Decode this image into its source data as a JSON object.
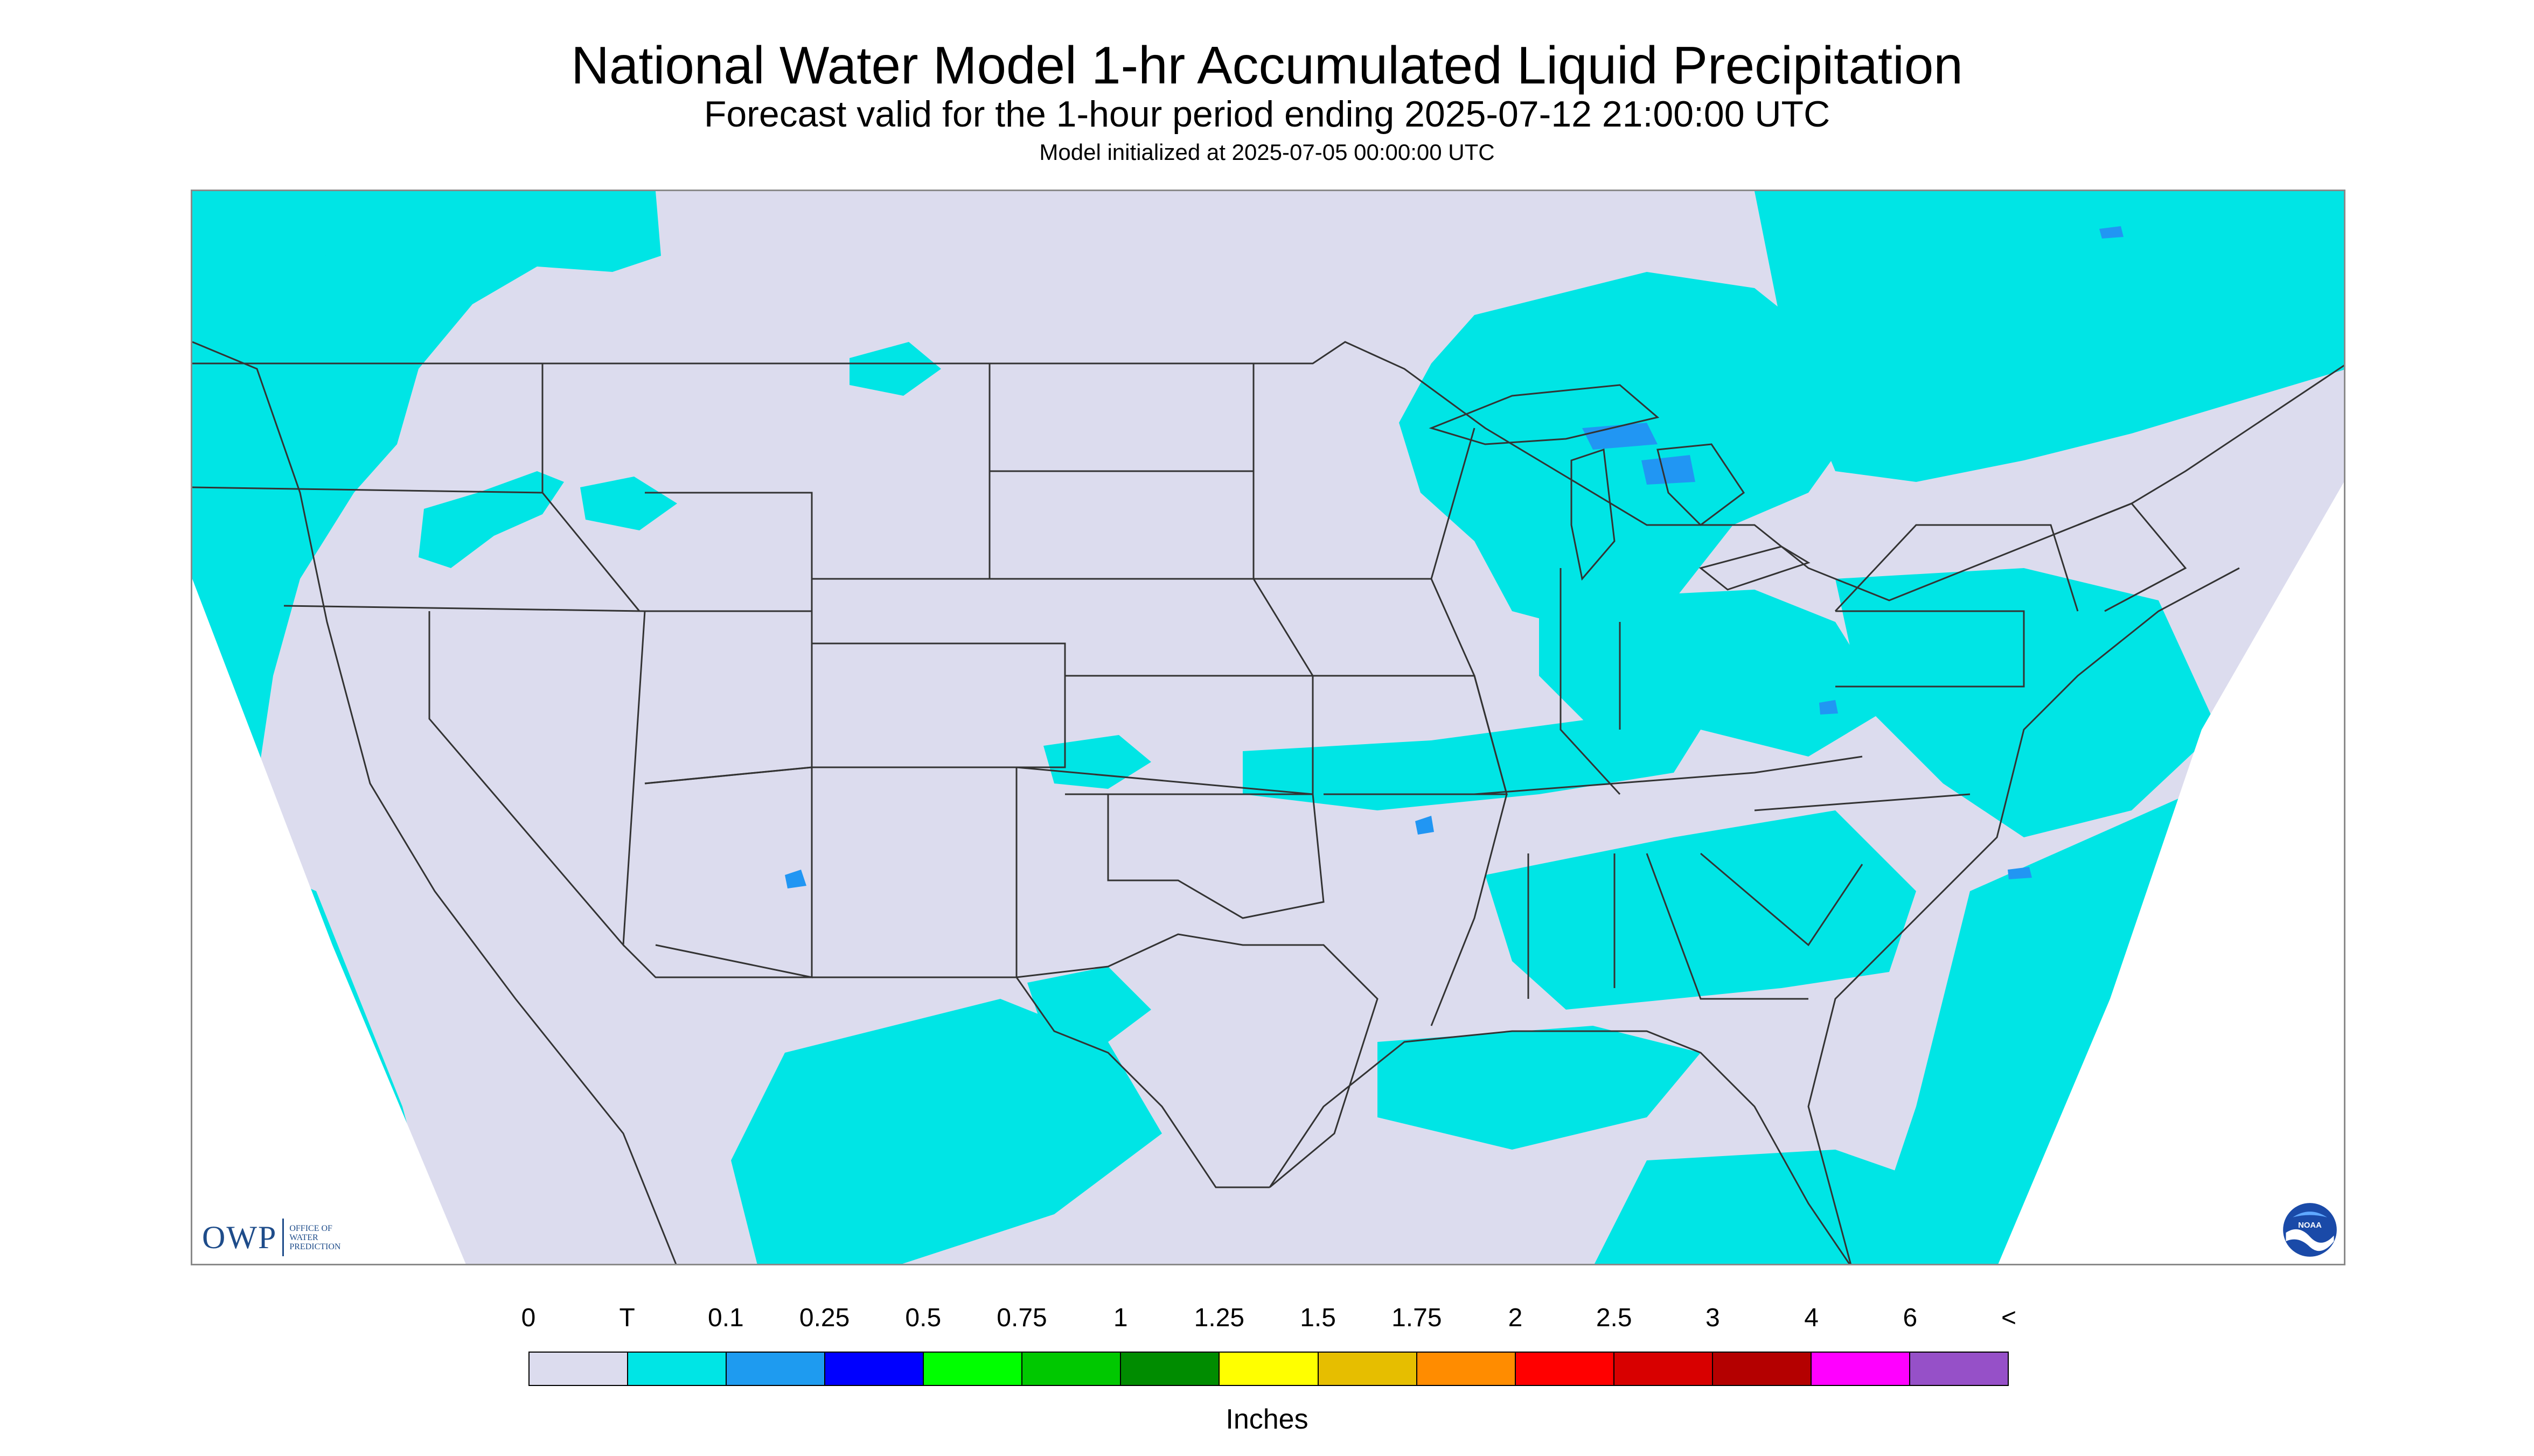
{
  "header": {
    "title": "National Water Model 1-hr Accumulated Liquid Precipitation",
    "subtitle": "Forecast valid for the 1-hour period ending 2025-07-12 21:00:00 UTC",
    "init": "Model initialized at 2025-07-05 00:00:00 UTC"
  },
  "map": {
    "background_color": "#dcdcee",
    "precip_color": "#00e5e5",
    "heavier_color": "#2196f3",
    "border_color": "#333333",
    "owp_logo": {
      "text": "OWP",
      "lines": [
        "OFFICE OF",
        "WATER",
        "PREDICTION"
      ]
    },
    "noaa_logo": {
      "text": "NOAA"
    }
  },
  "legend": {
    "labels": [
      "0",
      "T",
      "0.1",
      "0.25",
      "0.5",
      "0.75",
      "1",
      "1.25",
      "1.5",
      "1.75",
      "2",
      "2.5",
      "3",
      "4",
      "6",
      "<"
    ],
    "colors": [
      "#dcdcee",
      "#00e5e5",
      "#1e9bf0",
      "#0000ff",
      "#00ff00",
      "#00c800",
      "#008c00",
      "#ffff00",
      "#e6be00",
      "#ff8c00",
      "#ff0000",
      "#d80000",
      "#b40000",
      "#ff00ff",
      "#9650c8"
    ],
    "units": "Inches"
  }
}
